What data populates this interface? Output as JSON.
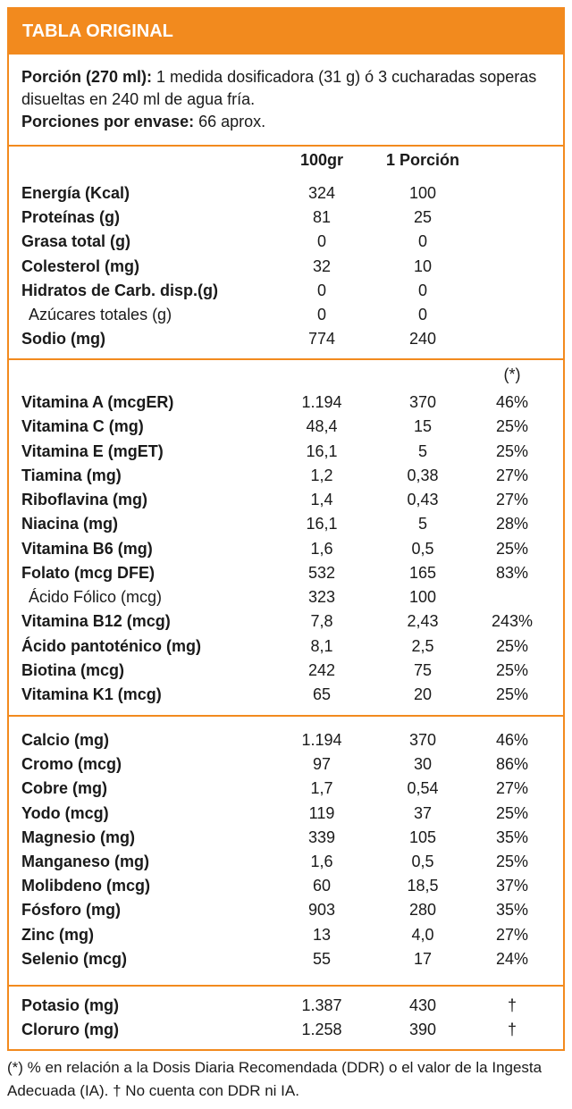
{
  "header": {
    "title": "TABLA ORIGINAL"
  },
  "portion": {
    "label": "Porción (270 ml):",
    "text": " 1 medida dosificadora (31 g) ó 3 cucharadas soperas disueltas en 240 ml de agua fría.",
    "servings_label": "Porciones por envase:",
    "servings_text": " 66 aprox."
  },
  "columns": {
    "per100": "100gr",
    "perPortion": "1 Porción",
    "ddr_mark": "(*)"
  },
  "macros": [
    {
      "name": "Energía (Kcal)",
      "v100": "324",
      "vp": "100"
    },
    {
      "name": "Proteínas (g)",
      "v100": "81",
      "vp": "25"
    },
    {
      "name": "Grasa total (g)",
      "v100": "0",
      "vp": "0"
    },
    {
      "name": "Colesterol (mg)",
      "v100": "32",
      "vp": "10"
    },
    {
      "name": "Hidratos de Carb. disp.(g)",
      "v100": "0",
      "vp": "0"
    },
    {
      "name": "Azúcares totales (g)",
      "v100": "0",
      "vp": "0",
      "sub": true
    },
    {
      "name": "Sodio (mg)",
      "v100": "774",
      "vp": "240"
    }
  ],
  "vitamins": [
    {
      "name": "Vitamina A (mcgER)",
      "v100": "1.194",
      "vp": "370",
      "pct": "46%"
    },
    {
      "name": "Vitamina C (mg)",
      "v100": "48,4",
      "vp": "15",
      "pct": "25%"
    },
    {
      "name": "Vitamina E (mgET)",
      "v100": "16,1",
      "vp": "5",
      "pct": "25%"
    },
    {
      "name": "Tiamina (mg)",
      "v100": "1,2",
      "vp": "0,38",
      "pct": "27%"
    },
    {
      "name": "Riboflavina (mg)",
      "v100": "1,4",
      "vp": "0,43",
      "pct": "27%"
    },
    {
      "name": "Niacina (mg)",
      "v100": "16,1",
      "vp": "5",
      "pct": "28%"
    },
    {
      "name": "Vitamina B6 (mg)",
      "v100": "1,6",
      "vp": "0,5",
      "pct": "25%"
    },
    {
      "name": "Folato (mcg DFE)",
      "v100": "532",
      "vp": "165",
      "pct": "83%"
    },
    {
      "name": "Ácido Fólico (mcg)",
      "v100": "323",
      "vp": "100",
      "pct": "",
      "sub": true
    },
    {
      "name": "Vitamina B12 (mcg)",
      "v100": "7,8",
      "vp": "2,43",
      "pct": "243%"
    },
    {
      "name": "Ácido pantoténico (mg)",
      "v100": "8,1",
      "vp": "2,5",
      "pct": "25%"
    },
    {
      "name": "Biotina (mcg)",
      "v100": "242",
      "vp": "75",
      "pct": "25%"
    },
    {
      "name": "Vitamina K1 (mcg)",
      "v100": "65",
      "vp": "20",
      "pct": "25%"
    }
  ],
  "minerals": [
    {
      "name": "Calcio (mg)",
      "v100": "1.194",
      "vp": "370",
      "pct": "46%"
    },
    {
      "name": "Cromo (mcg)",
      "v100": "97",
      "vp": "30",
      "pct": "86%"
    },
    {
      "name": "Cobre (mg)",
      "v100": "1,7",
      "vp": "0,54",
      "pct": "27%"
    },
    {
      "name": "Yodo (mcg)",
      "v100": "119",
      "vp": "37",
      "pct": "25%"
    },
    {
      "name": "Magnesio (mg)",
      "v100": "339",
      "vp": "105",
      "pct": "35%"
    },
    {
      "name": "Manganeso (mg)",
      "v100": "1,6",
      "vp": "0,5",
      "pct": "25%"
    },
    {
      "name": "Molibdeno (mcg)",
      "v100": "60",
      "vp": "18,5",
      "pct": "37%"
    },
    {
      "name": "Fósforo (mg)",
      "v100": "903",
      "vp": "280",
      "pct": "35%"
    },
    {
      "name": "Zinc (mg)",
      "v100": "13",
      "vp": "4,0",
      "pct": "27%"
    },
    {
      "name": "Selenio (mcg)",
      "v100": "55",
      "vp": "17",
      "pct": "24%"
    }
  ],
  "electrolytes": [
    {
      "name": "Potasio (mg)",
      "v100": "1.387",
      "vp": "430",
      "pct": "†"
    },
    {
      "name": "Cloruro (mg)",
      "v100": "1.258",
      "vp": "390",
      "pct": "†"
    }
  ],
  "footnote": "(*) % en relación a la Dosis Diaria Recomendada (DDR) o el valor de la Ingesta Adecuada (IA). † No cuenta con DDR ni IA.",
  "colors": {
    "accent": "#f28a1e"
  }
}
